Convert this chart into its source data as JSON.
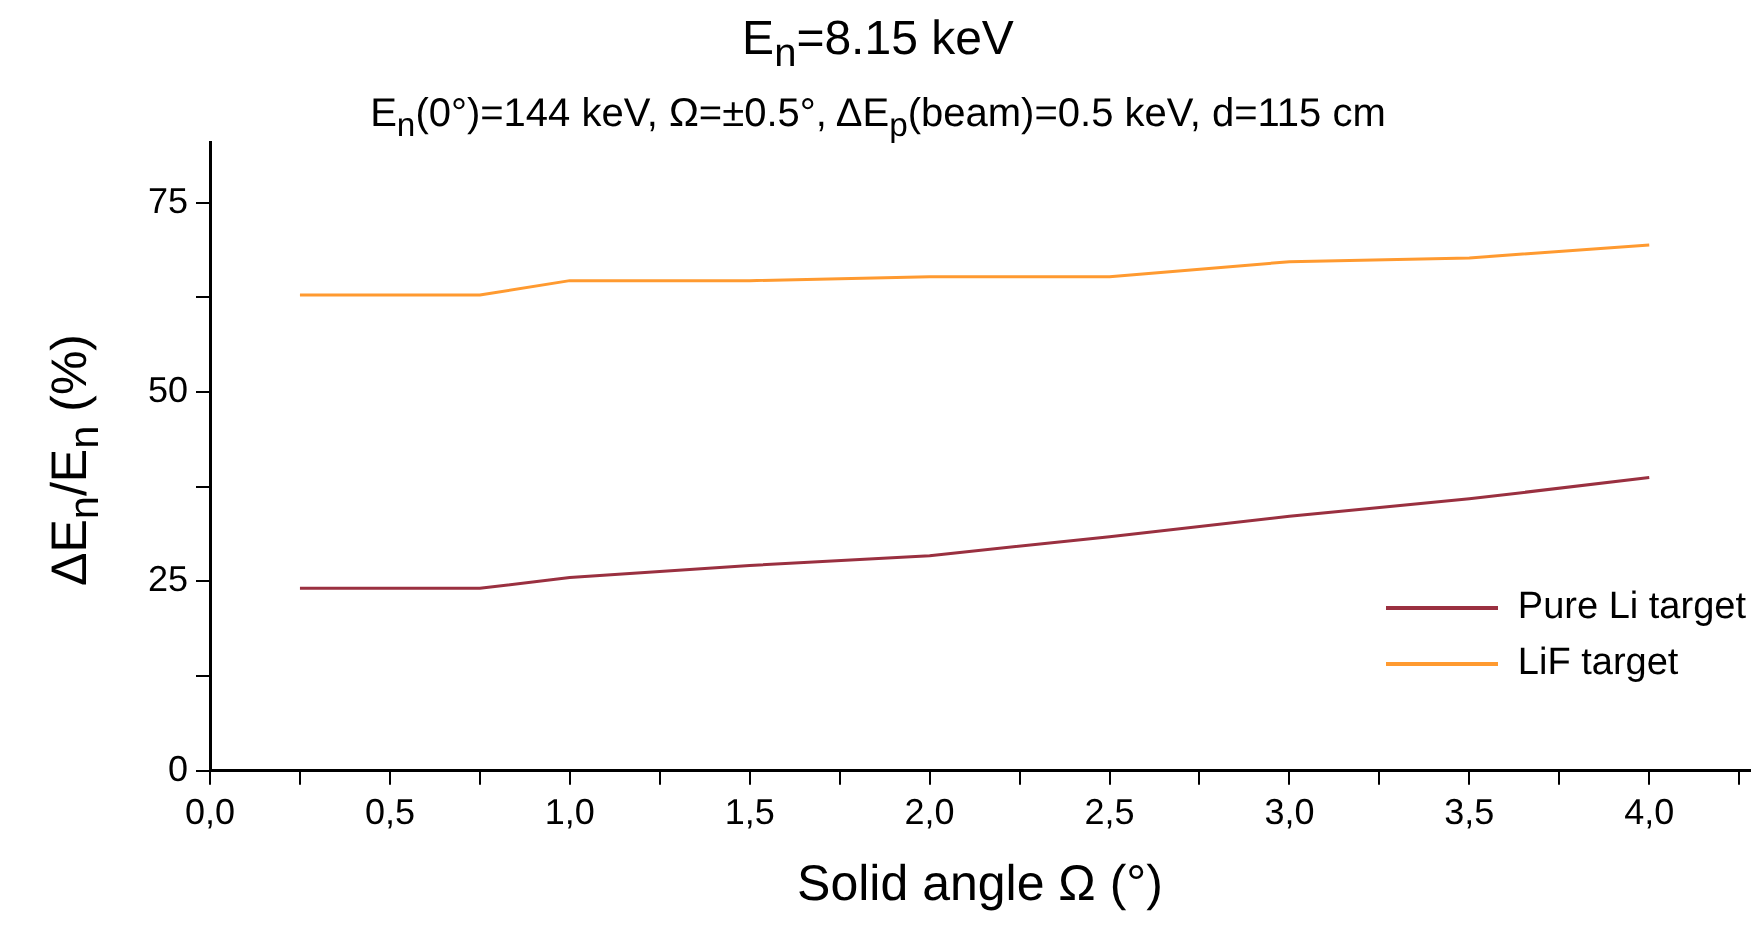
{
  "chart_data": {
    "type": "line",
    "title": "E$_{n}$=8.15 keV",
    "subtitle": "E$_{n}$(0°)=144 keV,  Ω=±0.5°,  ΔE$_{p}$(beam)=0.5 keV, d=115 cm",
    "xlabel": "Solid angle Ω (°)",
    "ylabel": "ΔE$_{n}$/E$_{n}$ (%)",
    "x": [
      0.25,
      0.75,
      1,
      1.5,
      2,
      2.5,
      3,
      3.5,
      4
    ],
    "series": [
      {
        "name": "Pure Li target",
        "color": "#9a3040",
        "values": [
          24.1,
          24.1,
          25.5,
          27.1,
          28.4,
          30.9,
          33.6,
          35.9,
          38.7
        ]
      },
      {
        "name": "LiF target",
        "color": "#ff9a30",
        "values": [
          62.8,
          62.8,
          64.7,
          64.7,
          65.2,
          65.2,
          67.2,
          67.7,
          69.4
        ]
      }
    ],
    "xlim": [
      0,
      4.28
    ],
    "xticks": [
      {
        "value": 0,
        "label": "0,0"
      },
      {
        "value": 0.25,
        "label": null
      },
      {
        "value": 0.5,
        "label": "0,5"
      },
      {
        "value": 0.75,
        "label": null
      },
      {
        "value": 1,
        "label": "1,0"
      },
      {
        "value": 1.25,
        "label": null
      },
      {
        "value": 1.5,
        "label": "1,5"
      },
      {
        "value": 1.75,
        "label": null
      },
      {
        "value": 2,
        "label": "2,0"
      },
      {
        "value": 2.25,
        "label": null
      },
      {
        "value": 2.5,
        "label": "2,5"
      },
      {
        "value": 2.75,
        "label": null
      },
      {
        "value": 3,
        "label": "3,0"
      },
      {
        "value": 3.25,
        "label": null
      },
      {
        "value": 3.5,
        "label": "3,5"
      },
      {
        "value": 3.75,
        "label": null
      },
      {
        "value": 4,
        "label": "4,0"
      },
      {
        "value": 4.25,
        "label": null
      }
    ],
    "ylim": [
      0,
      83
    ],
    "yticks": [
      0,
      {
        "value": 12.5,
        "label": null
      },
      25,
      {
        "value": 37.5,
        "label": null
      },
      50,
      {
        "value": 62.5,
        "label": null
      },
      75
    ],
    "grid": false,
    "legend": "bottom right",
    "marker": "none",
    "line_style": "solid"
  }
}
